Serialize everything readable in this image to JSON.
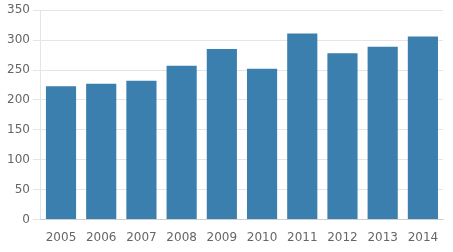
{
  "chart_data": {
    "type": "bar",
    "categories": [
      "2005",
      "2006",
      "2007",
      "2008",
      "2009",
      "2010",
      "2011",
      "2012",
      "2013",
      "2014"
    ],
    "values": [
      223,
      227,
      232,
      257,
      285,
      252,
      311,
      278,
      289,
      306
    ],
    "color": "#3a7fad",
    "ylim": [
      0,
      350
    ],
    "yticks": [
      0,
      50,
      100,
      150,
      200,
      250,
      300,
      350
    ],
    "grid": true
  }
}
